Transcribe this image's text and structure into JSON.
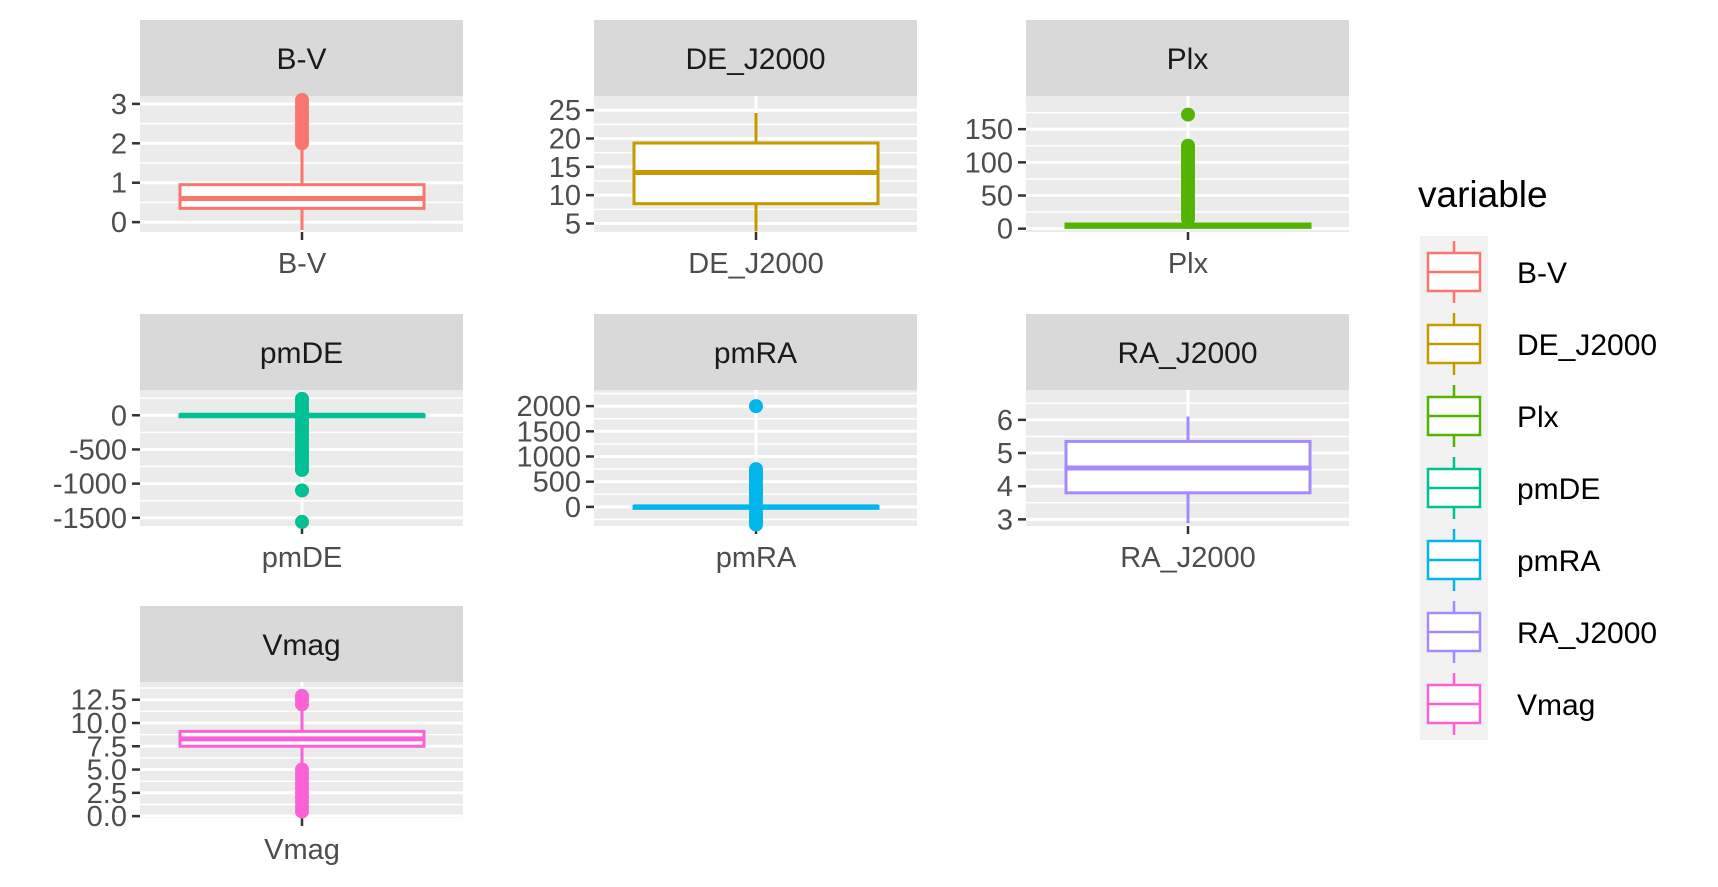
{
  "chart_data": {
    "type": "boxplot",
    "facet_wrap": true,
    "legend": {
      "title": "variable",
      "position": "right"
    },
    "grid": true,
    "panels": [
      {
        "name": "B-V",
        "color": "#F8766D",
        "ylim": [
          -0.25,
          3.2
        ],
        "yticks": [
          0,
          1,
          2,
          3
        ],
        "ytick_labels": [
          "0",
          "1",
          "2",
          "3"
        ],
        "box": {
          "q1": 0.35,
          "median": 0.6,
          "q3": 0.95,
          "whisker_low": -0.2,
          "whisker_high": 1.9
        },
        "outliers": [
          2.0,
          2.1,
          2.2,
          2.3,
          2.4,
          2.5,
          2.6,
          2.7,
          2.8,
          2.9,
          3.0,
          3.1
        ]
      },
      {
        "name": "DE_J2000",
        "color": "#C49A00",
        "ylim": [
          3.5,
          27.5
        ],
        "yticks": [
          5,
          10,
          15,
          20,
          25
        ],
        "ytick_labels": [
          "5",
          "10",
          "15",
          "20",
          "25"
        ],
        "box": {
          "q1": 8.5,
          "median": 14,
          "q3": 19.2,
          "whisker_low": 3.6,
          "whisker_high": 24.5
        },
        "outliers": []
      },
      {
        "name": "Plx",
        "color": "#53B400",
        "ylim": [
          -5,
          200
        ],
        "yticks": [
          0,
          50,
          100,
          150
        ],
        "ytick_labels": [
          "0",
          "50",
          "100",
          "150"
        ],
        "box": {
          "q1": 2,
          "median": 4,
          "q3": 7,
          "whisker_low": 0,
          "whisker_high": 12
        },
        "outliers": [
          15,
          20,
          25,
          30,
          35,
          40,
          45,
          50,
          55,
          60,
          65,
          70,
          75,
          80,
          85,
          90,
          95,
          100,
          105,
          110,
          115,
          120,
          125,
          172
        ]
      },
      {
        "name": "pmDE",
        "color": "#00C094",
        "ylim": [
          -1620,
          370
        ],
        "yticks": [
          -1500,
          -1000,
          -500,
          0
        ],
        "ytick_labels": [
          "-1500",
          "-1000",
          "-500",
          "0"
        ],
        "box": {
          "q1": -10,
          "median": 0,
          "q3": 8,
          "whisker_low": -40,
          "whisker_high": 35
        },
        "outliers": [
          -1560,
          -1100,
          -800,
          -750,
          -700,
          -650,
          -600,
          -550,
          -500,
          -450,
          -400,
          -350,
          -300,
          -250,
          -200,
          -150,
          -100,
          -60,
          60,
          100,
          150,
          200,
          240
        ]
      },
      {
        "name": "pmRA",
        "color": "#00B6EB",
        "ylim": [
          -380,
          2320
        ],
        "yticks": [
          0,
          500,
          1000,
          1500,
          2000
        ],
        "ytick_labels": [
          "0",
          "500",
          "1000",
          "1500",
          "2000"
        ],
        "box": {
          "q1": -10,
          "median": 0,
          "q3": 10,
          "whisker_low": -50,
          "whisker_high": 50
        },
        "outliers": [
          -350,
          -300,
          -250,
          -200,
          -150,
          -100,
          100,
          150,
          200,
          250,
          300,
          350,
          400,
          450,
          500,
          550,
          600,
          650,
          700,
          750,
          2000
        ]
      },
      {
        "name": "RA_J2000",
        "color": "#A58AFF",
        "ylim": [
          2.8,
          6.9
        ],
        "yticks": [
          3,
          4,
          5,
          6
        ],
        "ytick_labels": [
          "3",
          "4",
          "5",
          "6"
        ],
        "box": {
          "q1": 3.8,
          "median": 4.55,
          "q3": 5.35,
          "whisker_low": 2.88,
          "whisker_high": 6.1
        },
        "outliers": []
      },
      {
        "name": "Vmag",
        "color": "#FB61D7",
        "ylim": [
          -0.2,
          14.4
        ],
        "yticks": [
          0,
          2.5,
          5,
          7.5,
          10,
          12.5
        ],
        "ytick_labels": [
          "0.0",
          "2.5",
          "5.0",
          "7.5",
          "10.0",
          "12.5"
        ],
        "box": {
          "q1": 7.5,
          "median": 8.3,
          "q3": 9.1,
          "whisker_low": 5.1,
          "whisker_high": 11.5
        },
        "outliers": [
          0.5,
          1.0,
          1.5,
          2.0,
          2.5,
          3.0,
          3.5,
          4.0,
          4.5,
          5.0,
          12.0,
          12.5,
          12.9
        ]
      }
    ]
  }
}
